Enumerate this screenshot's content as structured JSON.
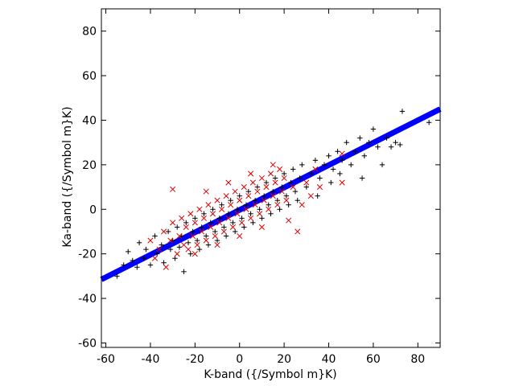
{
  "chart_data": {
    "type": "scatter",
    "xlabel": "K-band ({/Symbol m}K)",
    "ylabel": "Ka-band ({/Symbol m}K)",
    "xlim": [
      -62,
      90
    ],
    "ylim": [
      -62,
      90
    ],
    "x_ticks": [
      -60,
      -40,
      -20,
      0,
      20,
      40,
      60,
      80
    ],
    "y_ticks": [
      -60,
      -40,
      -20,
      0,
      20,
      40,
      60,
      80
    ],
    "grid": false,
    "legend": "none",
    "colors": {
      "series_black": "#000000",
      "series_red": "#dd0000",
      "fit_line": "#0000ff"
    },
    "series": [
      {
        "marker": "plus",
        "color": "#000000",
        "description_of_distribution": "dense elongated cloud along fit line",
        "points": [
          [
            -55,
            -30
          ],
          [
            -52,
            -25
          ],
          [
            -50,
            -19
          ],
          [
            -48,
            -23
          ],
          [
            -46,
            -26
          ],
          [
            -45,
            -15
          ],
          [
            -43,
            -22
          ],
          [
            -42,
            -18
          ],
          [
            -40,
            -25
          ],
          [
            -38,
            -12
          ],
          [
            -37,
            -20
          ],
          [
            -35,
            -16
          ],
          [
            -34,
            -24
          ],
          [
            -32,
            -10
          ],
          [
            -31,
            -18
          ],
          [
            -30,
            -14
          ],
          [
            -29,
            -22
          ],
          [
            -28,
            -8
          ],
          [
            -27,
            -17
          ],
          [
            -26,
            -12
          ],
          [
            -25,
            -28
          ],
          [
            -24,
            -6
          ],
          [
            -23,
            -15
          ],
          [
            -22,
            -20
          ],
          [
            -21,
            -10
          ],
          [
            -20,
            -4
          ],
          [
            -19,
            -14
          ],
          [
            -18,
            -18
          ],
          [
            -17,
            -8
          ],
          [
            -16,
            -2
          ],
          [
            -15,
            -12
          ],
          [
            -14,
            -16
          ],
          [
            -13,
            -6
          ],
          [
            -12,
            0
          ],
          [
            -11,
            -10
          ],
          [
            -10,
            -14
          ],
          [
            -9,
            -4
          ],
          [
            -8,
            2
          ],
          [
            -7,
            -8
          ],
          [
            -6,
            -12
          ],
          [
            -5,
            -2
          ],
          [
            -4,
            4
          ],
          [
            -3,
            -6
          ],
          [
            -2,
            -10
          ],
          [
            -1,
            0
          ],
          [
            0,
            6
          ],
          [
            1,
            -4
          ],
          [
            2,
            -8
          ],
          [
            3,
            2
          ],
          [
            4,
            8
          ],
          [
            5,
            -2
          ],
          [
            6,
            -6
          ],
          [
            7,
            4
          ],
          [
            8,
            10
          ],
          [
            9,
            0
          ],
          [
            10,
            -4
          ],
          [
            11,
            6
          ],
          [
            12,
            12
          ],
          [
            13,
            2
          ],
          [
            14,
            -2
          ],
          [
            15,
            8
          ],
          [
            16,
            14
          ],
          [
            17,
            4
          ],
          [
            18,
            0
          ],
          [
            19,
            10
          ],
          [
            20,
            16
          ],
          [
            21,
            6
          ],
          [
            22,
            2
          ],
          [
            23,
            12
          ],
          [
            24,
            18
          ],
          [
            25,
            8
          ],
          [
            26,
            4
          ],
          [
            27,
            14
          ],
          [
            28,
            20
          ],
          [
            30,
            10
          ],
          [
            32,
            16
          ],
          [
            34,
            22
          ],
          [
            35,
            6
          ],
          [
            36,
            14
          ],
          [
            38,
            20
          ],
          [
            40,
            24
          ],
          [
            41,
            12
          ],
          [
            42,
            18
          ],
          [
            44,
            26
          ],
          [
            45,
            16
          ],
          [
            46,
            22
          ],
          [
            48,
            30
          ],
          [
            50,
            20
          ],
          [
            52,
            26
          ],
          [
            54,
            32
          ],
          [
            55,
            14
          ],
          [
            56,
            24
          ],
          [
            58,
            30
          ],
          [
            60,
            36
          ],
          [
            62,
            28
          ],
          [
            64,
            20
          ],
          [
            66,
            32
          ],
          [
            68,
            28
          ],
          [
            70,
            30
          ],
          [
            72,
            29
          ],
          [
            73,
            44
          ],
          [
            85,
            39
          ]
        ]
      },
      {
        "marker": "cross",
        "color": "#dd0000",
        "description_of_distribution": "denser central cloud overlapping black points",
        "points": [
          [
            -40,
            -14
          ],
          [
            -38,
            -22
          ],
          [
            -36,
            -18
          ],
          [
            -34,
            -10
          ],
          [
            -33,
            -26
          ],
          [
            -31,
            -14
          ],
          [
            -30,
            -6
          ],
          [
            -30,
            9
          ],
          [
            -28,
            -20
          ],
          [
            -27,
            -12
          ],
          [
            -26,
            -4
          ],
          [
            -25,
            -16
          ],
          [
            -24,
            -8
          ],
          [
            -23,
            -18
          ],
          [
            -22,
            -2
          ],
          [
            -21,
            -12
          ],
          [
            -20,
            -6
          ],
          [
            -19,
            -16
          ],
          [
            -18,
            0
          ],
          [
            -17,
            -10
          ],
          [
            -16,
            -4
          ],
          [
            -15,
            -14
          ],
          [
            -14,
            2
          ],
          [
            -13,
            -8
          ],
          [
            -12,
            -2
          ],
          [
            -11,
            -12
          ],
          [
            -10,
            4
          ],
          [
            -9,
            -6
          ],
          [
            -8,
            0
          ],
          [
            -7,
            -10
          ],
          [
            -6,
            6
          ],
          [
            -5,
            -4
          ],
          [
            -4,
            2
          ],
          [
            -3,
            -8
          ],
          [
            -2,
            8
          ],
          [
            -1,
            -2
          ],
          [
            0,
            4
          ],
          [
            1,
            -6
          ],
          [
            2,
            10
          ],
          [
            3,
            0
          ],
          [
            4,
            6
          ],
          [
            5,
            -4
          ],
          [
            6,
            12
          ],
          [
            7,
            2
          ],
          [
            8,
            8
          ],
          [
            9,
            -2
          ],
          [
            10,
            14
          ],
          [
            11,
            4
          ],
          [
            12,
            10
          ],
          [
            13,
            0
          ],
          [
            14,
            16
          ],
          [
            15,
            6
          ],
          [
            16,
            12
          ],
          [
            17,
            2
          ],
          [
            18,
            18
          ],
          [
            19,
            8
          ],
          [
            20,
            14
          ],
          [
            21,
            4
          ],
          [
            22,
            -5
          ],
          [
            24,
            10
          ],
          [
            26,
            -10
          ],
          [
            28,
            2
          ],
          [
            30,
            12
          ],
          [
            32,
            6
          ],
          [
            34,
            18
          ],
          [
            36,
            10
          ],
          [
            46,
            12
          ],
          [
            46,
            25
          ],
          [
            -20,
            -20
          ],
          [
            -10,
            -16
          ],
          [
            0,
            -12
          ],
          [
            10,
            -8
          ],
          [
            -15,
            8
          ],
          [
            -5,
            12
          ],
          [
            5,
            16
          ],
          [
            15,
            20
          ]
        ]
      }
    ],
    "fit_line": {
      "color": "#0000ff",
      "x": [
        -62,
        90
      ],
      "y": [
        -31.5,
        45
      ]
    }
  }
}
